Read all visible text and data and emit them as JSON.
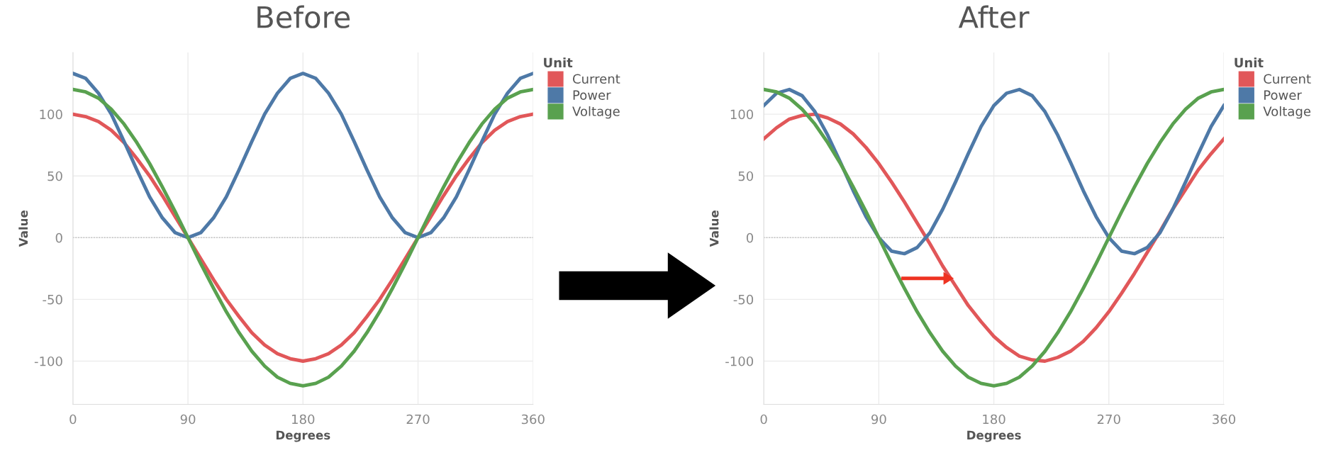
{
  "chart_data": [
    {
      "type": "line",
      "title": "Before",
      "xlabel": "Degrees",
      "ylabel": "Value",
      "legend_title": "Unit",
      "legend": "top right",
      "grid": true,
      "x": [
        0,
        10,
        20,
        30,
        40,
        50,
        60,
        70,
        80,
        90,
        100,
        110,
        120,
        130,
        140,
        150,
        160,
        170,
        180,
        190,
        200,
        210,
        220,
        230,
        240,
        250,
        260,
        270,
        280,
        290,
        300,
        310,
        320,
        330,
        340,
        350,
        360
      ],
      "xlim": [
        0,
        360
      ],
      "xticks": [
        0,
        90,
        180,
        270,
        360
      ],
      "ylim": [
        -135,
        150
      ],
      "yticks": [
        -100,
        -50,
        0,
        50,
        100
      ],
      "ref_lines": [
        {
          "axis": "y",
          "value": 0,
          "color": "#bbbbbb",
          "line_style": "dotted"
        }
      ],
      "series": [
        {
          "name": "Current",
          "color": "#e15759",
          "values": [
            100,
            98,
            94,
            87,
            77,
            64,
            50,
            34,
            17,
            0,
            -17,
            -34,
            -50,
            -64,
            -77,
            -87,
            -94,
            -98,
            -100,
            -98,
            -94,
            -87,
            -77,
            -64,
            -50,
            -34,
            -17,
            0,
            17,
            34,
            50,
            64,
            77,
            87,
            94,
            98,
            100
          ]
        },
        {
          "name": "Power",
          "color": "#4e79a7",
          "values": [
            133,
            129,
            117,
            100,
            78,
            55,
            33,
            16,
            4,
            0,
            4,
            16,
            33,
            55,
            78,
            100,
            117,
            129,
            133,
            129,
            117,
            100,
            78,
            55,
            33,
            16,
            4,
            0,
            4,
            16,
            33,
            55,
            78,
            100,
            117,
            129,
            133
          ]
        },
        {
          "name": "Voltage",
          "color": "#59a14f",
          "values": [
            120,
            118,
            113,
            104,
            92,
            77,
            60,
            41,
            21,
            0,
            -21,
            -41,
            -60,
            -77,
            -92,
            -104,
            -113,
            -118,
            -120,
            -118,
            -113,
            -104,
            -92,
            -77,
            -60,
            -41,
            -21,
            0,
            21,
            41,
            60,
            77,
            92,
            104,
            113,
            118,
            120
          ]
        }
      ]
    },
    {
      "type": "line",
      "title": "After",
      "xlabel": "Degrees",
      "ylabel": "Value",
      "legend_title": "Unit",
      "legend": "top right",
      "grid": true,
      "x": [
        0,
        10,
        20,
        30,
        40,
        50,
        60,
        70,
        80,
        90,
        100,
        110,
        120,
        130,
        140,
        150,
        160,
        170,
        180,
        190,
        200,
        210,
        220,
        230,
        240,
        250,
        260,
        270,
        280,
        290,
        300,
        310,
        320,
        330,
        340,
        350,
        360
      ],
      "xlim": [
        0,
        360
      ],
      "xticks": [
        0,
        90,
        180,
        270,
        360
      ],
      "ylim": [
        -135,
        150
      ],
      "yticks": [
        -100,
        -50,
        0,
        50,
        100
      ],
      "ref_lines": [
        {
          "axis": "y",
          "value": 0,
          "color": "#bbbbbb",
          "line_style": "dotted"
        }
      ],
      "series": [
        {
          "name": "Current",
          "color": "#e15759",
          "values": [
            80,
            89,
            96,
            99,
            100,
            97,
            92,
            84,
            73,
            60,
            45,
            29,
            12,
            -5,
            -23,
            -39,
            -55,
            -68,
            -80,
            -89,
            -96,
            -99,
            -100,
            -97,
            -92,
            -84,
            -73,
            -60,
            -45,
            -29,
            -12,
            5,
            23,
            39,
            55,
            68,
            80
          ]
        },
        {
          "name": "Power",
          "color": "#4e79a7",
          "values": [
            107,
            117,
            120,
            115,
            102,
            83,
            61,
            38,
            17,
            0,
            -11,
            -13,
            -8,
            4,
            23,
            45,
            68,
            90,
            107,
            117,
            120,
            115,
            102,
            83,
            61,
            38,
            17,
            0,
            -11,
            -13,
            -8,
            4,
            23,
            45,
            68,
            90,
            107
          ]
        },
        {
          "name": "Voltage",
          "color": "#59a14f",
          "values": [
            120,
            118,
            113,
            104,
            92,
            77,
            60,
            41,
            21,
            0,
            -21,
            -41,
            -60,
            -77,
            -92,
            -104,
            -113,
            -118,
            -120,
            -118,
            -113,
            -104,
            -92,
            -77,
            -60,
            -41,
            -21,
            0,
            21,
            41,
            60,
            77,
            92,
            104,
            113,
            118,
            120
          ]
        }
      ]
    }
  ]
}
